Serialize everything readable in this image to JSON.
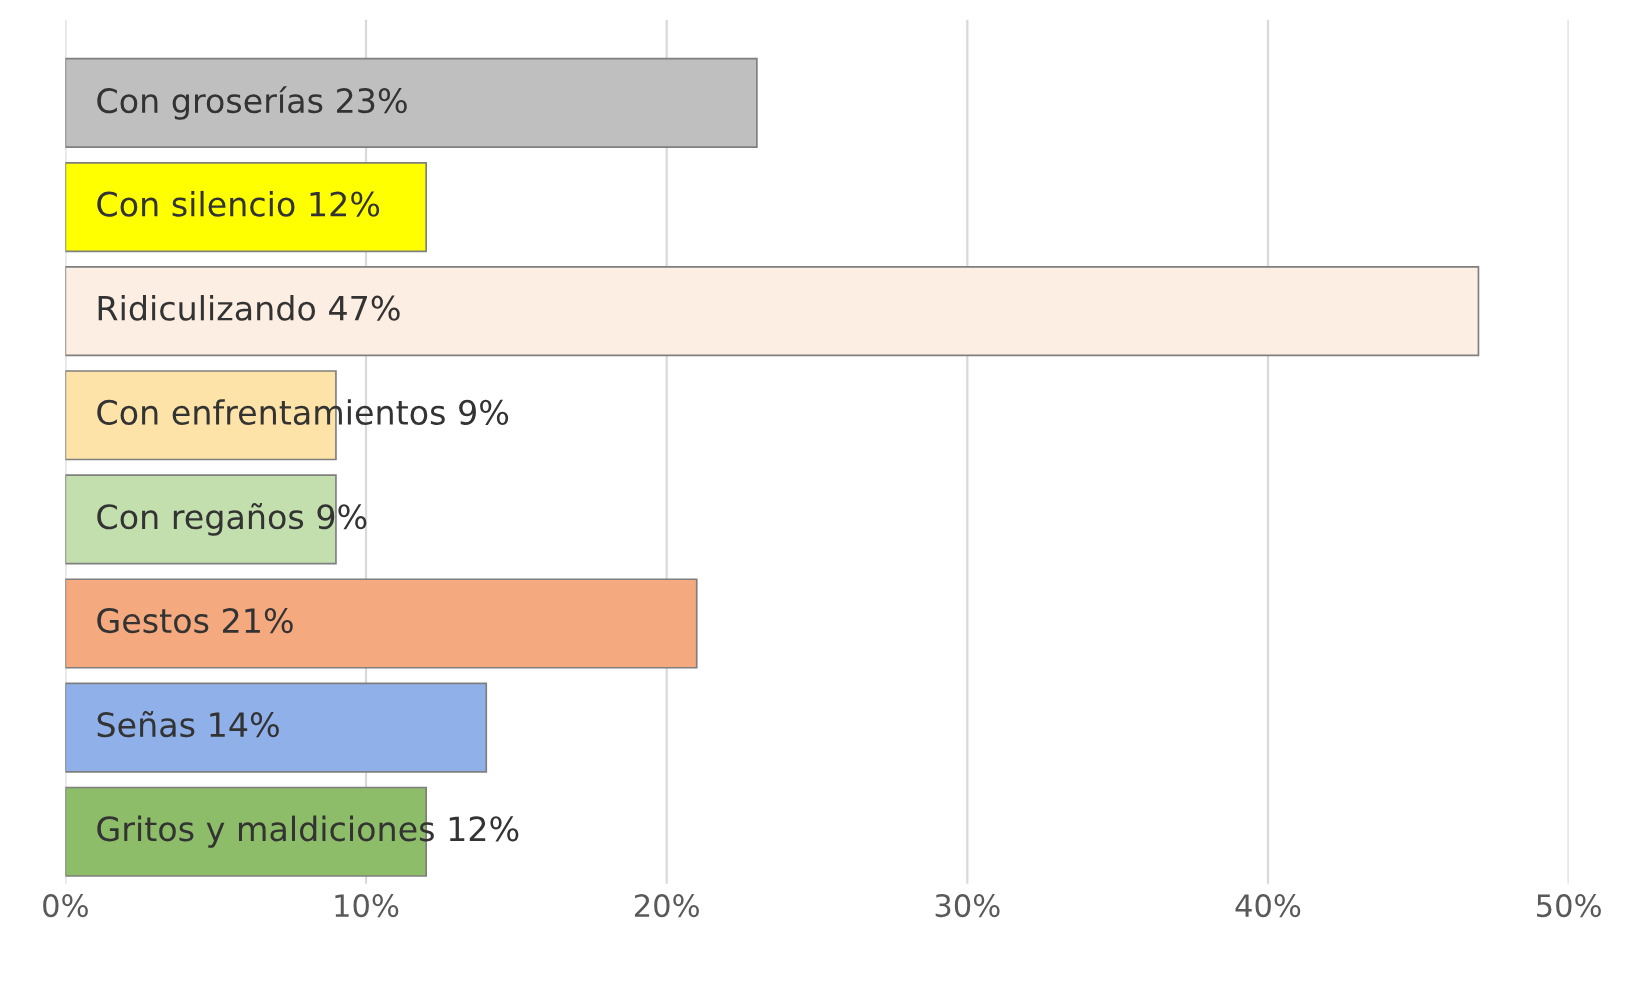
{
  "chart_data": {
    "type": "bar",
    "orientation": "horizontal",
    "categories": [
      "Con groserías",
      "Con silencio",
      "Ridiculizando",
      "Con enfrentamientos",
      "Con regaños",
      "Gestos",
      "Señas",
      "Gritos y maldiciones"
    ],
    "values": [
      23,
      12,
      47,
      9,
      9,
      21,
      14,
      12
    ],
    "value_labels": [
      "23%",
      "12%",
      "47%",
      "9%",
      "9%",
      "21%",
      "14%",
      "12%"
    ],
    "colors": [
      "#bfbfbf",
      "#ffff00",
      "#fdeee4",
      "#fde3a7",
      "#c3dfae",
      "#f4a97f",
      "#8fb0e8",
      "#8dbd68"
    ],
    "xlim": [
      0,
      50
    ],
    "xticks": [
      {
        "value": 0,
        "label": "0%"
      },
      {
        "value": 10,
        "label": "10%"
      },
      {
        "value": 20,
        "label": "20%"
      },
      {
        "value": 30,
        "label": "30%"
      },
      {
        "value": 40,
        "label": "40%"
      },
      {
        "value": 50,
        "label": "50%"
      }
    ],
    "grid": "x",
    "tick_labels": "x"
  }
}
